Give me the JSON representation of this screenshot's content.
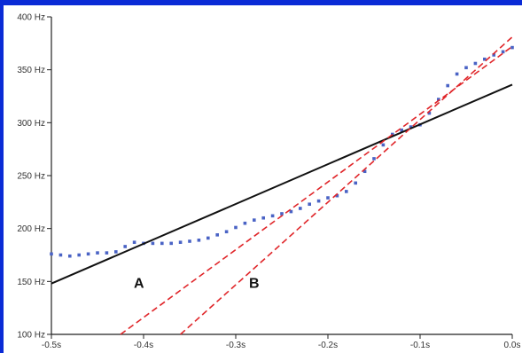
{
  "chart_data": {
    "type": "line",
    "title": "",
    "xlabel": "",
    "ylabel": "",
    "xlim": [
      -0.5,
      0.0
    ],
    "ylim": [
      100,
      400
    ],
    "x_ticks": [
      -0.5,
      -0.4,
      -0.3,
      -0.2,
      -0.1,
      0.0
    ],
    "x_tick_labels": [
      "-0.5s",
      "-0.4s",
      "-0.3s",
      "-0.2s",
      "-0.1s",
      "0.0s"
    ],
    "y_ticks": [
      100,
      150,
      200,
      250,
      300,
      350,
      400
    ],
    "y_tick_labels": [
      "100 Hz",
      "150 Hz",
      "200 Hz",
      "250 Hz",
      "300 Hz",
      "350 Hz",
      "400 Hz"
    ],
    "grid": false,
    "annotations": [
      {
        "text": "A",
        "x": -0.405,
        "y": 144
      },
      {
        "text": "B",
        "x": -0.28,
        "y": 144
      }
    ],
    "series": [
      {
        "color": "#4a63c5",
        "style": "dotted",
        "points": [
          [
            -0.5,
            176
          ],
          [
            -0.49,
            175
          ],
          [
            -0.48,
            174
          ],
          [
            -0.47,
            175
          ],
          [
            -0.46,
            176
          ],
          [
            -0.45,
            177
          ],
          [
            -0.44,
            177
          ],
          [
            -0.43,
            178
          ],
          [
            -0.42,
            183
          ],
          [
            -0.41,
            187
          ],
          [
            -0.4,
            186
          ],
          [
            -0.39,
            186
          ],
          [
            -0.38,
            186
          ],
          [
            -0.37,
            186
          ],
          [
            -0.36,
            187
          ],
          [
            -0.35,
            188
          ],
          [
            -0.34,
            189
          ],
          [
            -0.33,
            191
          ],
          [
            -0.32,
            194
          ],
          [
            -0.31,
            197
          ],
          [
            -0.3,
            201
          ],
          [
            -0.29,
            205
          ],
          [
            -0.28,
            208
          ],
          [
            -0.27,
            210
          ],
          [
            -0.26,
            212
          ],
          [
            -0.25,
            214
          ],
          [
            -0.24,
            216
          ],
          [
            -0.23,
            219
          ],
          [
            -0.22,
            223
          ],
          [
            -0.21,
            226
          ],
          [
            -0.2,
            229
          ],
          [
            -0.19,
            231
          ],
          [
            -0.18,
            235
          ],
          [
            -0.17,
            243
          ],
          [
            -0.16,
            254
          ],
          [
            -0.15,
            266
          ],
          [
            -0.14,
            279
          ],
          [
            -0.13,
            289
          ],
          [
            -0.12,
            293
          ],
          [
            -0.11,
            296
          ],
          [
            -0.1,
            298
          ],
          [
            -0.09,
            309
          ],
          [
            -0.08,
            322
          ],
          [
            -0.07,
            335
          ],
          [
            -0.06,
            346
          ],
          [
            -0.05,
            352
          ],
          [
            -0.04,
            356
          ],
          [
            -0.03,
            360
          ],
          [
            -0.02,
            364
          ],
          [
            -0.01,
            367
          ],
          [
            0.0,
            371
          ]
        ]
      },
      {
        "color": "#111111",
        "style": "solid",
        "points": [
          [
            -0.5,
            148
          ],
          [
            0.0,
            336
          ]
        ]
      },
      {
        "color": "#e0262a",
        "style": "dashed",
        "points": [
          [
            -0.425,
            100
          ],
          [
            0.0,
            372
          ]
        ]
      },
      {
        "color": "#e0262a",
        "style": "dashed",
        "points": [
          [
            -0.36,
            100
          ],
          [
            0.0,
            381
          ]
        ]
      }
    ]
  }
}
